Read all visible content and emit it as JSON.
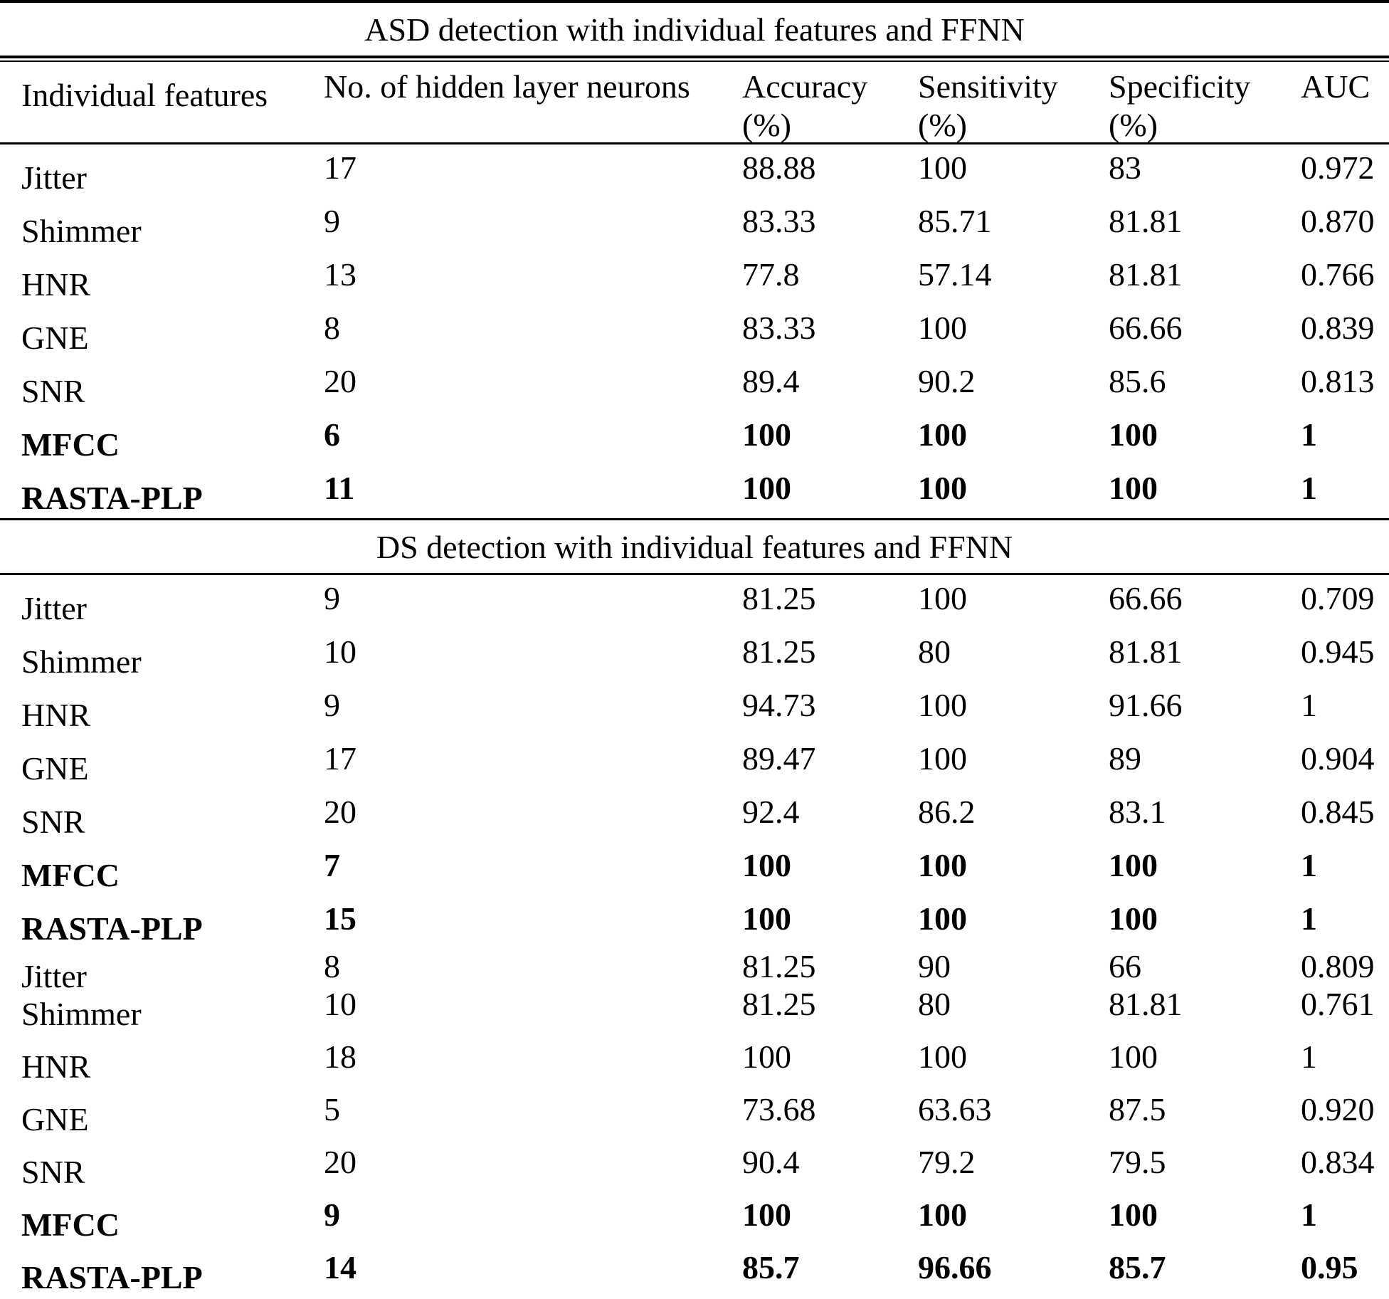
{
  "header": {
    "features": "Individual features",
    "neurons": "No. of hidden layer neurons",
    "accuracy": "Accuracy",
    "sensitivity": "Sensitivity",
    "specificity": "Specificity",
    "auc": "AUC",
    "unit": "(%)"
  },
  "sections": [
    {
      "title": "ASD detection with individual features and FFNN",
      "rows": [
        {
          "feature": "Jitter",
          "neurons": "17",
          "accuracy": "88.88",
          "sensitivity": "100",
          "specificity": "83",
          "auc": "0.972"
        },
        {
          "feature": "Shimmer",
          "neurons": "9",
          "accuracy": "83.33",
          "sensitivity": "85.71",
          "specificity": "81.81",
          "auc": "0.870"
        },
        {
          "feature": "HNR",
          "neurons": "13",
          "accuracy": "77.8",
          "sensitivity": "57.14",
          "specificity": "81.81",
          "auc": "0.766"
        },
        {
          "feature": "GNE",
          "neurons": "8",
          "accuracy": "83.33",
          "sensitivity": "100",
          "specificity": "66.66",
          "auc": "0.839"
        },
        {
          "feature": "SNR",
          "neurons": "20",
          "accuracy": "89.4",
          "sensitivity": "90.2",
          "specificity": "85.6",
          "auc": "0.813"
        },
        {
          "feature": "MFCC",
          "neurons": "6",
          "accuracy": "100",
          "sensitivity": "100",
          "specificity": "100",
          "auc": "1"
        },
        {
          "feature": "RASTA-PLP",
          "neurons": "11",
          "accuracy": "100",
          "sensitivity": "100",
          "specificity": "100",
          "auc": "1"
        }
      ]
    },
    {
      "title": "DS detection with individual features and FFNN",
      "rows": [
        {
          "feature": "Jitter",
          "neurons": "9",
          "accuracy": "81.25",
          "sensitivity": "100",
          "specificity": "66.66",
          "auc": "0.709"
        },
        {
          "feature": "Shimmer",
          "neurons": "10",
          "accuracy": "81.25",
          "sensitivity": "80",
          "specificity": "81.81",
          "auc": "0.945"
        },
        {
          "feature": "HNR",
          "neurons": "9",
          "accuracy": "94.73",
          "sensitivity": "100",
          "specificity": "91.66",
          "auc": "1"
        },
        {
          "feature": "GNE",
          "neurons": "17",
          "accuracy": "89.47",
          "sensitivity": "100",
          "specificity": "89",
          "auc": "0.904"
        },
        {
          "feature": "SNR",
          "neurons": "20",
          "accuracy": "92.4",
          "sensitivity": "86.2",
          "specificity": "83.1",
          "auc": "0.845"
        },
        {
          "feature": "MFCC",
          "neurons": "7",
          "accuracy": "100",
          "sensitivity": "100",
          "specificity": "100",
          "auc": "1"
        },
        {
          "feature": "RASTA-PLP",
          "neurons": "15",
          "accuracy": "100",
          "sensitivity": "100",
          "specificity": "100",
          "auc": "1"
        }
      ]
    },
    {
      "title": "",
      "rows": [
        {
          "feature": "Jitter",
          "neurons": "8",
          "accuracy": "81.25",
          "sensitivity": "90",
          "specificity": "66",
          "auc": "0.809"
        },
        {
          "feature": "Shimmer",
          "neurons": "10",
          "accuracy": "81.25",
          "sensitivity": "80",
          "specificity": "81.81",
          "auc": "0.761"
        },
        {
          "feature": "HNR",
          "neurons": "18",
          "accuracy": "100",
          "sensitivity": "100",
          "specificity": "100",
          "auc": "1"
        },
        {
          "feature": "GNE",
          "neurons": "5",
          "accuracy": "73.68",
          "sensitivity": "63.63",
          "specificity": "87.5",
          "auc": "0.920"
        },
        {
          "feature": "SNR",
          "neurons": "20",
          "accuracy": "90.4",
          "sensitivity": "79.2",
          "specificity": "79.5",
          "auc": "0.834"
        },
        {
          "feature": "MFCC",
          "neurons": "9",
          "accuracy": "100",
          "sensitivity": "100",
          "specificity": "100",
          "auc": "1"
        },
        {
          "feature": "RASTA-PLP",
          "neurons": "14",
          "accuracy": "85.7",
          "sensitivity": "96.66",
          "specificity": "85.7",
          "auc": "0.95"
        }
      ]
    }
  ]
}
